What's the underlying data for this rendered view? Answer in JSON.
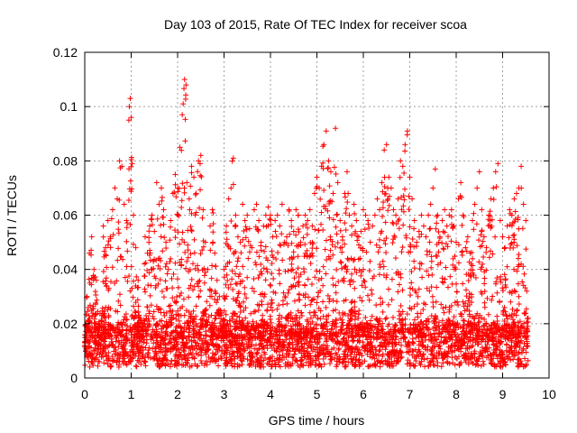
{
  "chart_data": {
    "type": "scatter",
    "title": "Day 103 of 2015, Rate Of TEC Index for receiver scoa",
    "xlabel": "GPS time / hours",
    "ylabel": "ROTI / TECUs",
    "xlim": [
      0,
      10
    ],
    "ylim": [
      0,
      0.12
    ],
    "xticks": [
      "0",
      "1",
      "2",
      "3",
      "4",
      "5",
      "6",
      "7",
      "8",
      "9",
      "10"
    ],
    "yticks": [
      "0",
      "0.02",
      "0.04",
      "0.06",
      "0.08",
      "0.1",
      "0.12"
    ],
    "grid": true,
    "marker": "+",
    "color": "#ff0000",
    "data_range_x": [
      0,
      9.55
    ],
    "series": [
      {
        "values_note": "",
        "points": [
          [
            0.0,
            0.012
          ],
          [
            0.05,
            0.03
          ],
          [
            0.1,
            0.046
          ],
          [
            0.15,
            0.052
          ],
          [
            0.2,
            0.04
          ],
          [
            0.25,
            0.036
          ],
          [
            0.3,
            0.02
          ],
          [
            0.35,
            0.014
          ],
          [
            0.4,
            0.056
          ],
          [
            0.45,
            0.048
          ],
          [
            0.5,
            0.058
          ],
          [
            0.55,
            0.052
          ],
          [
            0.6,
            0.062
          ],
          [
            0.65,
            0.07
          ],
          [
            0.7,
            0.066
          ],
          [
            0.75,
            0.08
          ],
          [
            0.8,
            0.078
          ],
          [
            0.85,
            0.064
          ],
          [
            0.9,
            0.058
          ],
          [
            0.95,
            0.095
          ],
          [
            0.96,
            0.1
          ],
          [
            0.98,
            0.103
          ],
          [
            1.0,
            0.096
          ],
          [
            1.02,
            0.079
          ],
          [
            1.05,
            0.06
          ],
          [
            1.1,
            0.048
          ],
          [
            1.15,
            0.036
          ],
          [
            1.2,
            0.022
          ],
          [
            1.25,
            0.018
          ],
          [
            1.3,
            0.052
          ],
          [
            1.35,
            0.046
          ],
          [
            1.4,
            0.056
          ],
          [
            1.45,
            0.06
          ],
          [
            1.5,
            0.054
          ],
          [
            1.55,
            0.072
          ],
          [
            1.6,
            0.064
          ],
          [
            1.65,
            0.07
          ],
          [
            1.7,
            0.062
          ],
          [
            1.75,
            0.05
          ],
          [
            1.8,
            0.04
          ],
          [
            1.85,
            0.058
          ],
          [
            1.9,
            0.068
          ],
          [
            1.95,
            0.075
          ],
          [
            2.0,
            0.07
          ],
          [
            2.05,
            0.085
          ],
          [
            2.1,
            0.097
          ],
          [
            2.12,
            0.101
          ],
          [
            2.15,
            0.11
          ],
          [
            2.18,
            0.108
          ],
          [
            2.2,
            0.072
          ],
          [
            2.25,
            0.066
          ],
          [
            2.3,
            0.078
          ],
          [
            2.35,
            0.074
          ],
          [
            2.4,
            0.068
          ],
          [
            2.45,
            0.08
          ],
          [
            2.5,
            0.082
          ],
          [
            2.55,
            0.062
          ],
          [
            2.6,
            0.05
          ],
          [
            2.65,
            0.04
          ],
          [
            2.7,
            0.056
          ],
          [
            2.75,
            0.062
          ],
          [
            2.8,
            0.046
          ],
          [
            2.85,
            0.036
          ],
          [
            2.9,
            0.03
          ],
          [
            2.95,
            0.024
          ],
          [
            3.0,
            0.04
          ],
          [
            3.05,
            0.056
          ],
          [
            3.1,
            0.066
          ],
          [
            3.15,
            0.07
          ],
          [
            3.2,
            0.081
          ],
          [
            3.25,
            0.06
          ],
          [
            3.3,
            0.052
          ],
          [
            3.35,
            0.05
          ],
          [
            3.4,
            0.064
          ],
          [
            3.45,
            0.058
          ],
          [
            3.5,
            0.06
          ],
          [
            3.55,
            0.055
          ],
          [
            3.6,
            0.048
          ],
          [
            3.65,
            0.062
          ],
          [
            3.7,
            0.064
          ],
          [
            3.75,
            0.058
          ],
          [
            3.8,
            0.05
          ],
          [
            3.85,
            0.056
          ],
          [
            3.9,
            0.06
          ],
          [
            3.95,
            0.063
          ],
          [
            4.0,
            0.06
          ],
          [
            4.05,
            0.052
          ],
          [
            4.1,
            0.058
          ],
          [
            4.15,
            0.06
          ],
          [
            4.2,
            0.056
          ],
          [
            4.25,
            0.064
          ],
          [
            4.3,
            0.05
          ],
          [
            4.35,
            0.052
          ],
          [
            4.4,
            0.062
          ],
          [
            4.45,
            0.058
          ],
          [
            4.5,
            0.054
          ],
          [
            4.55,
            0.062
          ],
          [
            4.6,
            0.06
          ],
          [
            4.65,
            0.05
          ],
          [
            4.7,
            0.056
          ],
          [
            4.75,
            0.06
          ],
          [
            4.8,
            0.058
          ],
          [
            4.85,
            0.062
          ],
          [
            4.9,
            0.056
          ],
          [
            4.95,
            0.068
          ],
          [
            5.0,
            0.074
          ],
          [
            5.05,
            0.07
          ],
          [
            5.1,
            0.078
          ],
          [
            5.15,
            0.086
          ],
          [
            5.2,
            0.091
          ],
          [
            5.25,
            0.08
          ],
          [
            5.3,
            0.076
          ],
          [
            5.35,
            0.068
          ],
          [
            5.4,
            0.092
          ],
          [
            5.45,
            0.072
          ],
          [
            5.5,
            0.058
          ],
          [
            5.55,
            0.052
          ],
          [
            5.6,
            0.068
          ],
          [
            5.65,
            0.076
          ],
          [
            5.7,
            0.06
          ],
          [
            5.75,
            0.056
          ],
          [
            5.8,
            0.064
          ],
          [
            5.85,
            0.058
          ],
          [
            5.9,
            0.052
          ],
          [
            5.95,
            0.054
          ],
          [
            6.0,
            0.062
          ],
          [
            6.05,
            0.06
          ],
          [
            6.1,
            0.058
          ],
          [
            6.15,
            0.05
          ],
          [
            6.2,
            0.056
          ],
          [
            6.25,
            0.06
          ],
          [
            6.3,
            0.066
          ],
          [
            6.35,
            0.062
          ],
          [
            6.4,
            0.072
          ],
          [
            6.45,
            0.084
          ],
          [
            6.5,
            0.086
          ],
          [
            6.55,
            0.074
          ],
          [
            6.6,
            0.07
          ],
          [
            6.65,
            0.062
          ],
          [
            6.7,
            0.06
          ],
          [
            6.75,
            0.066
          ],
          [
            6.8,
            0.08
          ],
          [
            6.85,
            0.078
          ],
          [
            6.9,
            0.086
          ],
          [
            6.95,
            0.091
          ],
          [
            7.0,
            0.074
          ],
          [
            7.05,
            0.066
          ],
          [
            7.1,
            0.058
          ],
          [
            7.15,
            0.05
          ],
          [
            7.2,
            0.054
          ],
          [
            7.25,
            0.06
          ],
          [
            7.3,
            0.056
          ],
          [
            7.35,
            0.052
          ],
          [
            7.4,
            0.06
          ],
          [
            7.45,
            0.064
          ],
          [
            7.5,
            0.07
          ],
          [
            7.55,
            0.077
          ],
          [
            7.6,
            0.06
          ],
          [
            7.65,
            0.052
          ],
          [
            7.7,
            0.058
          ],
          [
            7.75,
            0.062
          ],
          [
            7.8,
            0.056
          ],
          [
            7.85,
            0.06
          ],
          [
            7.9,
            0.062
          ],
          [
            7.95,
            0.056
          ],
          [
            8.0,
            0.05
          ],
          [
            8.05,
            0.066
          ],
          [
            8.1,
            0.072
          ],
          [
            8.15,
            0.06
          ],
          [
            8.2,
            0.048
          ],
          [
            8.25,
            0.052
          ],
          [
            8.3,
            0.046
          ],
          [
            8.35,
            0.058
          ],
          [
            8.4,
            0.064
          ],
          [
            8.45,
            0.07
          ],
          [
            8.5,
            0.076
          ],
          [
            8.55,
            0.062
          ],
          [
            8.6,
            0.052
          ],
          [
            8.65,
            0.048
          ],
          [
            8.7,
            0.06
          ],
          [
            8.75,
            0.066
          ],
          [
            8.8,
            0.07
          ],
          [
            8.85,
            0.076
          ],
          [
            8.9,
            0.079
          ],
          [
            8.95,
            0.058
          ],
          [
            9.0,
            0.052
          ],
          [
            9.05,
            0.048
          ],
          [
            9.1,
            0.056
          ],
          [
            9.15,
            0.062
          ],
          [
            9.2,
            0.06
          ],
          [
            9.25,
            0.066
          ],
          [
            9.3,
            0.068
          ],
          [
            9.35,
            0.07
          ],
          [
            9.4,
            0.078
          ],
          [
            9.45,
            0.064
          ],
          [
            9.5,
            0.058
          ],
          [
            9.52,
            0.032
          ],
          [
            9.55,
            0.022
          ]
        ]
      }
    ]
  }
}
